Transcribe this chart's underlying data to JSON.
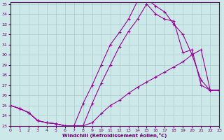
{
  "xlabel": "Windchill (Refroidissement éolien,°C)",
  "background_color": "#cce8e8",
  "grid_color": "#aacccc",
  "line_color": "#990099",
  "xlim": [
    0,
    23
  ],
  "ylim": [
    23,
    35.2
  ],
  "yticks": [
    23,
    24,
    25,
    26,
    27,
    28,
    29,
    30,
    31,
    32,
    33,
    34,
    35
  ],
  "xticks": [
    0,
    1,
    2,
    3,
    4,
    5,
    6,
    7,
    8,
    9,
    10,
    11,
    12,
    13,
    14,
    15,
    16,
    17,
    18,
    19,
    20,
    21,
    22,
    23
  ],
  "line1_x": [
    0,
    1,
    2,
    3,
    4,
    5,
    6,
    7,
    8,
    9,
    10,
    11,
    12,
    13,
    14,
    15,
    16,
    17,
    18,
    19,
    20,
    21,
    22,
    23
  ],
  "line1_y": [
    25.0,
    24.7,
    24.3,
    23.5,
    23.3,
    23.2,
    23.0,
    23.0,
    23.0,
    25.2,
    27.2,
    29.0,
    30.8,
    32.3,
    33.5,
    35.0,
    34.0,
    33.5,
    33.3,
    30.2,
    30.5,
    27.0,
    26.5,
    26.5
  ],
  "line2_x": [
    0,
    1,
    2,
    3,
    4,
    5,
    6,
    7,
    8,
    9,
    10,
    11,
    12,
    13,
    14,
    15,
    16,
    17,
    18,
    19,
    20,
    21,
    22,
    23
  ],
  "line2_y": [
    25.0,
    24.7,
    24.3,
    23.5,
    23.3,
    23.2,
    23.0,
    23.0,
    25.2,
    27.0,
    29.0,
    31.0,
    32.2,
    33.5,
    35.3,
    35.5,
    34.8,
    34.2,
    33.0,
    32.0,
    30.0,
    27.5,
    26.5,
    26.5
  ],
  "line3_x": [
    0,
    1,
    2,
    3,
    4,
    5,
    6,
    7,
    8,
    9,
    10,
    11,
    12,
    13,
    14,
    15,
    16,
    17,
    18,
    19,
    20,
    21,
    22,
    23
  ],
  "line3_y": [
    25.0,
    24.7,
    24.3,
    23.5,
    23.3,
    23.2,
    23.0,
    23.0,
    23.0,
    23.3,
    24.2,
    25.0,
    25.5,
    26.2,
    26.8,
    27.3,
    27.8,
    28.3,
    28.8,
    29.3,
    30.0,
    30.5,
    26.5,
    26.5
  ],
  "marker": "+",
  "markersize": 3.5,
  "linewidth": 0.8
}
